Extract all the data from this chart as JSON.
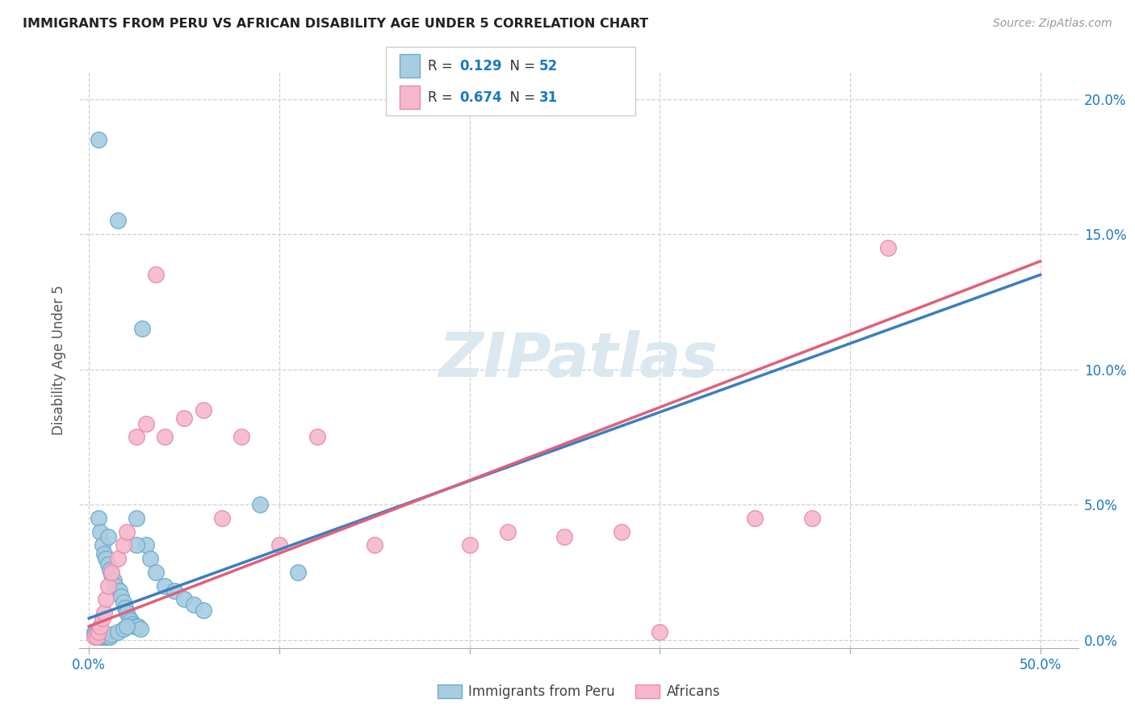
{
  "title": "IMMIGRANTS FROM PERU VS AFRICAN DISABILITY AGE UNDER 5 CORRELATION CHART",
  "source": "Source: ZipAtlas.com",
  "ylabel": "Disability Age Under 5",
  "ytick_values": [
    0.0,
    5.0,
    10.0,
    15.0,
    20.0
  ],
  "xtick_values": [
    0.0,
    10.0,
    20.0,
    30.0,
    40.0,
    50.0
  ],
  "xlim": [
    -0.5,
    52.0
  ],
  "ylim": [
    -0.3,
    21.0
  ],
  "legend_label_1": "Immigrants from Peru",
  "legend_label_2": "Africans",
  "blue_scatter_color": "#a8cce0",
  "blue_edge_color": "#6aacd0",
  "blue_line_color": "#3a7fbf",
  "pink_scatter_color": "#f5b8cb",
  "pink_edge_color": "#e88aaa",
  "pink_line_color": "#e0607a",
  "r_value_color": "#1a7abf",
  "watermark_color": "#dce8f0",
  "grid_color": "#d0d0d0",
  "title_color": "#222222",
  "axis_tick_color": "#1a7abf",
  "blue_scatter_x": [
    0.5,
    0.5,
    0.6,
    0.7,
    0.8,
    0.9,
    1.0,
    1.0,
    1.1,
    1.2,
    1.3,
    1.4,
    1.5,
    1.6,
    1.7,
    1.8,
    1.9,
    2.0,
    2.1,
    2.2,
    2.3,
    2.4,
    2.5,
    2.6,
    2.7,
    2.8,
    3.0,
    3.2,
    3.5,
    4.0,
    4.5,
    5.0,
    5.5,
    6.0,
    0.3,
    0.3,
    0.4,
    0.4,
    0.5,
    0.6,
    0.7,
    0.8,
    0.9,
    1.0,
    1.1,
    1.2,
    1.5,
    1.8,
    2.0,
    2.5,
    9.0,
    11.0
  ],
  "blue_scatter_y": [
    18.5,
    4.5,
    4.0,
    3.5,
    3.2,
    3.0,
    2.8,
    3.8,
    2.6,
    2.4,
    2.2,
    2.0,
    15.5,
    1.8,
    1.6,
    1.4,
    1.2,
    1.0,
    0.8,
    0.7,
    0.6,
    0.5,
    4.5,
    0.5,
    0.4,
    11.5,
    3.5,
    3.0,
    2.5,
    2.0,
    1.8,
    1.5,
    1.3,
    1.1,
    0.3,
    0.2,
    0.2,
    0.1,
    0.1,
    0.1,
    0.1,
    0.1,
    0.1,
    0.1,
    0.1,
    0.2,
    0.3,
    0.4,
    0.5,
    3.5,
    5.0,
    2.5
  ],
  "pink_scatter_x": [
    0.3,
    0.4,
    0.5,
    0.6,
    0.7,
    0.8,
    0.9,
    1.0,
    1.2,
    1.5,
    1.8,
    2.0,
    2.5,
    3.0,
    3.5,
    4.0,
    5.0,
    6.0,
    7.0,
    8.0,
    10.0,
    12.0,
    15.0,
    20.0,
    22.0,
    25.0,
    28.0,
    30.0,
    35.0,
    38.0,
    42.0
  ],
  "pink_scatter_y": [
    0.1,
    0.1,
    0.3,
    0.5,
    0.8,
    1.0,
    1.5,
    2.0,
    2.5,
    3.0,
    3.5,
    4.0,
    7.5,
    8.0,
    13.5,
    7.5,
    8.2,
    8.5,
    4.5,
    7.5,
    3.5,
    7.5,
    3.5,
    3.5,
    4.0,
    3.8,
    4.0,
    0.3,
    4.5,
    4.5,
    14.5
  ],
  "blue_line_x": [
    0.0,
    50.0
  ],
  "blue_line_y": [
    0.8,
    13.5
  ],
  "pink_line_x": [
    0.0,
    50.0
  ],
  "pink_line_y": [
    0.5,
    14.0
  ]
}
